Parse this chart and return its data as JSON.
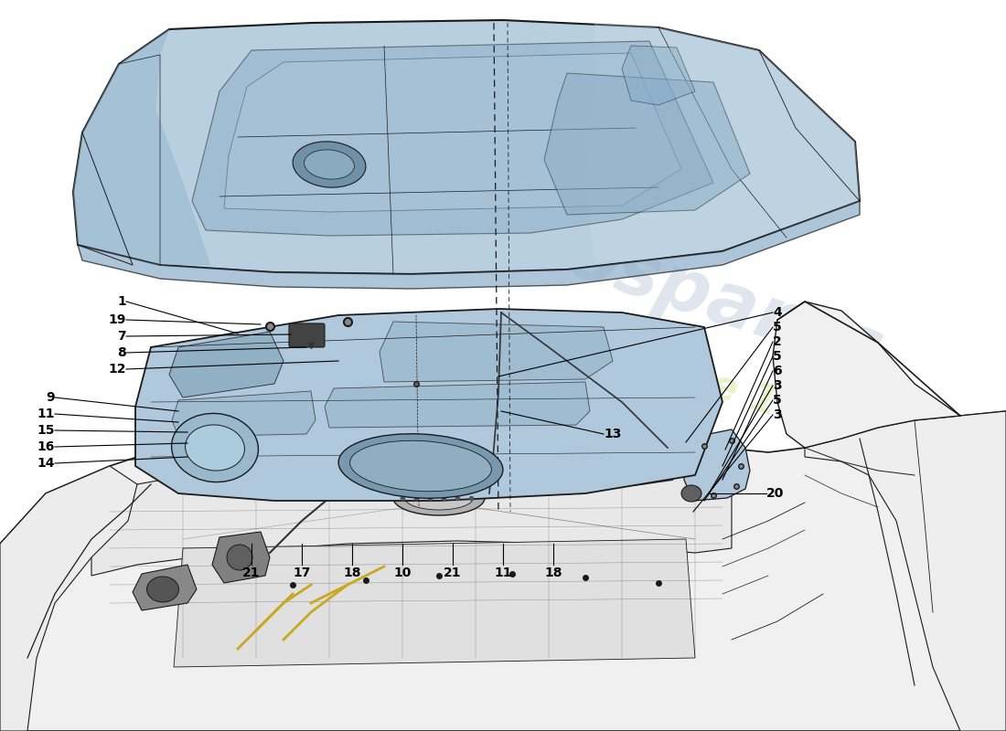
{
  "background_color": "#ffffff",
  "hood_fill": "#b8cfe0",
  "hood_dark": "#8aadc8",
  "hood_light": "#ccdde8",
  "inner_fill": "#b0c8dc",
  "inner_dark": "#88aac0",
  "body_fill": "#f0f0f0",
  "line_color": "#1a1a1a",
  "thin_line": "#2a2a2a",
  "yellow_line": "#c8a820",
  "wm_color1": "#b8c8d8",
  "wm_color2": "#d8e8a0",
  "wm_alpha1": 0.45,
  "wm_alpha2": 0.55,
  "label_fs": 10
}
